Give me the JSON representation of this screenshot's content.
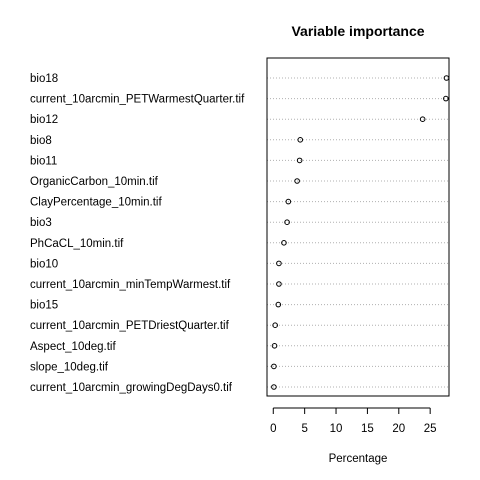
{
  "chart_data": {
    "type": "scatter",
    "title": "Variable importance",
    "xlabel": "Percentage",
    "ylabel": "",
    "xlim": [
      -1,
      28
    ],
    "xticks": [
      0,
      5,
      10,
      15,
      20,
      25
    ],
    "grid": "dotted horizontal",
    "categories": [
      "bio18",
      "current_10arcmin_PETWarmestQuarter.tif",
      "bio12",
      "bio8",
      "bio11",
      "OrganicCarbon_10min.tif",
      "ClayPercentage_10min.tif",
      "bio3",
      "PhCaCL_10min.tif",
      "bio10",
      "current_10arcmin_minTempWarmest.tif",
      "bio15",
      "current_10arcmin_PETDriestQuarter.tif",
      "Aspect_10deg.tif",
      "slope_10deg.tif",
      "current_10arcmin_growingDegDays0.tif"
    ],
    "values": [
      27.6,
      27.5,
      23.8,
      4.3,
      4.2,
      3.8,
      2.4,
      2.2,
      1.7,
      0.9,
      0.9,
      0.8,
      0.3,
      0.2,
      0.1,
      0.1
    ]
  }
}
